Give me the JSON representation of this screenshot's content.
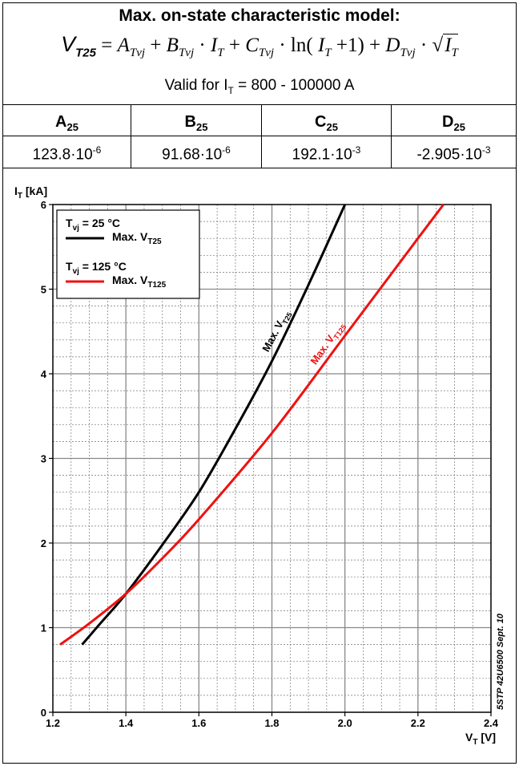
{
  "model": {
    "title": "Max. on-state characteristic model:",
    "formula": {
      "lhs_main": "V",
      "lhs_sub": "T25",
      "parts": [
        {
          "kind": "text",
          "value": " = "
        },
        {
          "kind": "sym",
          "main": "A",
          "sub": "Tvj"
        },
        {
          "kind": "text",
          "value": " + "
        },
        {
          "kind": "sym",
          "main": "B",
          "sub": "Tvj"
        },
        {
          "kind": "text",
          "value": " · "
        },
        {
          "kind": "sym",
          "main": "I",
          "sub": "T"
        },
        {
          "kind": "text",
          "value": " + "
        },
        {
          "kind": "sym",
          "main": "C",
          "sub": "Tvj"
        },
        {
          "kind": "text",
          "value": " · ln( "
        },
        {
          "kind": "sym",
          "main": "I",
          "sub": "T"
        },
        {
          "kind": "text",
          "value": " +1) + "
        },
        {
          "kind": "sym",
          "main": "D",
          "sub": "Tvj"
        },
        {
          "kind": "text",
          "value": " · √"
        },
        {
          "kind": "sym",
          "main": "I",
          "sub": "T",
          "overline": true
        }
      ]
    },
    "valid_prefix": "Valid for I",
    "valid_sub": "T",
    "valid_suffix": " = 800 - 100000 A"
  },
  "coefficients": {
    "headers": [
      {
        "main": "A",
        "sub": "25"
      },
      {
        "main": "B",
        "sub": "25"
      },
      {
        "main": "C",
        "sub": "25"
      },
      {
        "main": "D",
        "sub": "25"
      }
    ],
    "values": [
      {
        "base": "123.8·10",
        "exp": "-6"
      },
      {
        "base": "91.68·10",
        "exp": "-6"
      },
      {
        "base": "192.1·10",
        "exp": "-3"
      },
      {
        "base": "-2.905·10",
        "exp": "-3"
      }
    ]
  },
  "chart_data": {
    "type": "line",
    "ylabel_main": "I",
    "ylabel_sub": "T",
    "ylabel_unit": " [kA]",
    "xlabel_main": "V",
    "xlabel_sub": "T",
    "xlabel_unit": " [V]",
    "xlim": [
      1.2,
      2.4
    ],
    "ylim": [
      0,
      6
    ],
    "xticks": [
      "1.2",
      "1.4",
      "1.6",
      "1.8",
      "2.0",
      "2.2",
      "2.4"
    ],
    "yticks": [
      "0",
      "1",
      "2",
      "3",
      "4",
      "5",
      "6"
    ],
    "grid": true,
    "legend_placement": "top-left",
    "legend": [
      {
        "cond_main": "T",
        "cond_sub": "vj",
        "cond_suffix": " = 25 °C",
        "label_main": "Max. V",
        "label_sub": "T25",
        "color": "#000000"
      },
      {
        "cond_main": "T",
        "cond_sub": "vj",
        "cond_suffix": " = 125 °C",
        "label_main": "Max. V",
        "label_sub": "T125",
        "color": "#ee1111"
      }
    ],
    "series": [
      {
        "color": "#000000",
        "inline_label_main": "Max. V",
        "inline_label_sub": "T25",
        "x": [
          1.28,
          1.33,
          1.4,
          1.5,
          1.6,
          1.7,
          1.8,
          1.9,
          2.0
        ],
        "y": [
          0.8,
          1.05,
          1.4,
          1.98,
          2.6,
          3.35,
          4.15,
          5.05,
          6.0
        ]
      },
      {
        "color": "#ee1111",
        "inline_label_main": "Max. V",
        "inline_label_sub": "T125",
        "x": [
          1.22,
          1.3,
          1.4,
          1.5,
          1.6,
          1.8,
          2.0,
          2.2,
          2.27
        ],
        "y": [
          0.8,
          1.05,
          1.4,
          1.82,
          2.28,
          3.3,
          4.45,
          5.6,
          6.0
        ]
      }
    ],
    "note": "5STP 42U6500 Sept. 10"
  }
}
